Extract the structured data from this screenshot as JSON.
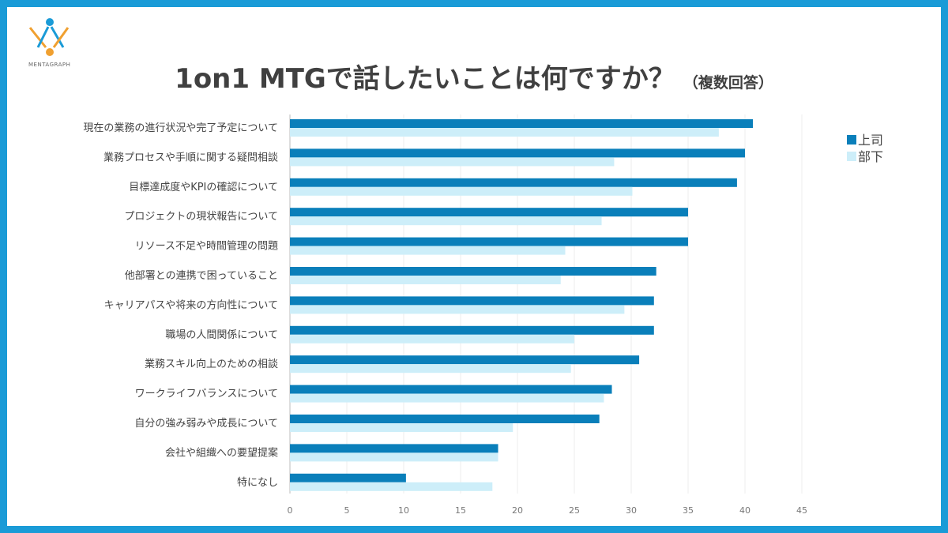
{
  "brand": {
    "name": "MENTAGRAPH"
  },
  "chart_data": {
    "type": "bar",
    "orientation": "horizontal",
    "title": "1on1 MTGで話したいことは何ですか？",
    "subtitle": "（複数回答）",
    "categories": [
      "現在の業務の進行状況や完了予定について",
      "業務プロセスや手順に関する疑問相談",
      "目標達成度やKPIの確認について",
      "プロジェクトの現状報告について",
      "リソース不足や時間管理の問題",
      "他部署との連携で困っていること",
      "キャリアパスや将来の方向性について",
      "職場の人間関係について",
      "業務スキル向上のための相談",
      "ワークライフバランスについて",
      "自分の強み弱みや成長について",
      "会社や組織への要望提案",
      "特になし"
    ],
    "series": [
      {
        "name": "上司",
        "color": "#0a7fba",
        "values": [
          40.7,
          40.0,
          39.3,
          35.0,
          35.0,
          32.2,
          32.0,
          32.0,
          30.7,
          28.3,
          27.2,
          18.3,
          10.2
        ]
      },
      {
        "name": "部下",
        "color": "#cdeef9",
        "values": [
          37.7,
          28.5,
          30.1,
          27.4,
          24.2,
          23.8,
          29.4,
          25.0,
          24.7,
          27.6,
          19.6,
          18.3,
          17.8
        ]
      }
    ],
    "xticks": [
      0,
      5,
      10,
      15,
      20,
      25,
      30,
      35,
      40,
      45
    ],
    "xlim": [
      0,
      45
    ],
    "grid": true,
    "legend": "right"
  }
}
